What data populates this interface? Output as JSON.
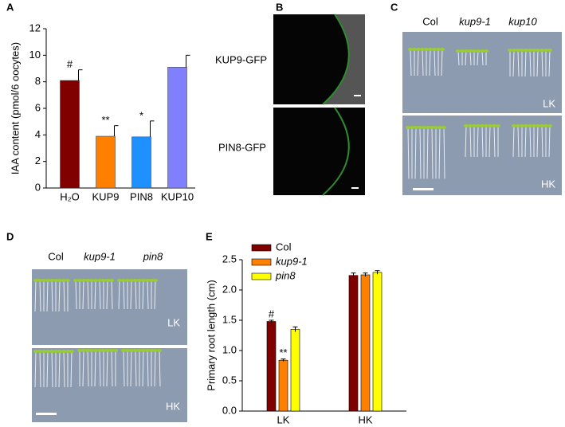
{
  "chart_data": [
    {
      "type": "bar",
      "panel": "A",
      "ylabel": "IAA content (pmol/6 oocytes)",
      "categories": [
        "H₂O",
        "KUP9",
        "PIN8",
        "KUP10"
      ],
      "values": [
        8.1,
        3.9,
        3.85,
        9.1
      ],
      "errors": [
        0.8,
        0.8,
        1.2,
        0.9
      ],
      "value_annotations": [
        "#",
        "**",
        "*",
        null
      ],
      "colors": [
        "#800000",
        "#ff8000",
        "#1e90ff",
        "#8080ff"
      ],
      "ylim": [
        0,
        12
      ],
      "yticks": [
        0,
        2,
        4,
        6,
        8,
        10,
        12
      ]
    },
    {
      "type": "grouped_bar",
      "panel": "E",
      "ylabel": "Primary root length (cm)",
      "categories": [
        "LK",
        "HK"
      ],
      "series": [
        {
          "name": "Col",
          "color": "#800000",
          "values": [
            1.48,
            2.24
          ],
          "errors": [
            0.02,
            0.04
          ],
          "annotations": [
            "#",
            null
          ]
        },
        {
          "name": "kup9-1",
          "color": "#ff8000",
          "values": [
            0.84,
            2.25
          ],
          "errors": [
            0.02,
            0.03
          ],
          "annotations": [
            "**",
            null
          ]
        },
        {
          "name": "pin8",
          "color": "#ffff00",
          "values": [
            1.35,
            2.29
          ],
          "errors": [
            0.04,
            0.03
          ],
          "annotations": [
            null,
            null
          ]
        }
      ],
      "ylim": [
        0,
        2.5
      ],
      "yticks": [
        {
          "value": 0,
          "label": "0.0"
        },
        0.5,
        {
          "value": 1,
          "label": "1.0"
        },
        1.5,
        {
          "value": 2,
          "label": "2.0"
        },
        2.5
      ],
      "legend": "top-left"
    }
  ],
  "images": {
    "B": {
      "panel": "B",
      "labels": [
        "KUP9-GFP",
        "PIN8-GFP"
      ]
    },
    "C": {
      "panel": "C",
      "columns": [
        "Col",
        "kup9-1",
        "kup10"
      ],
      "rows": [
        "LK",
        "HK"
      ]
    },
    "D": {
      "panel": "D",
      "columns": [
        "Col",
        "kup9-1",
        "pin8"
      ],
      "rows": [
        "LK",
        "HK"
      ]
    }
  }
}
